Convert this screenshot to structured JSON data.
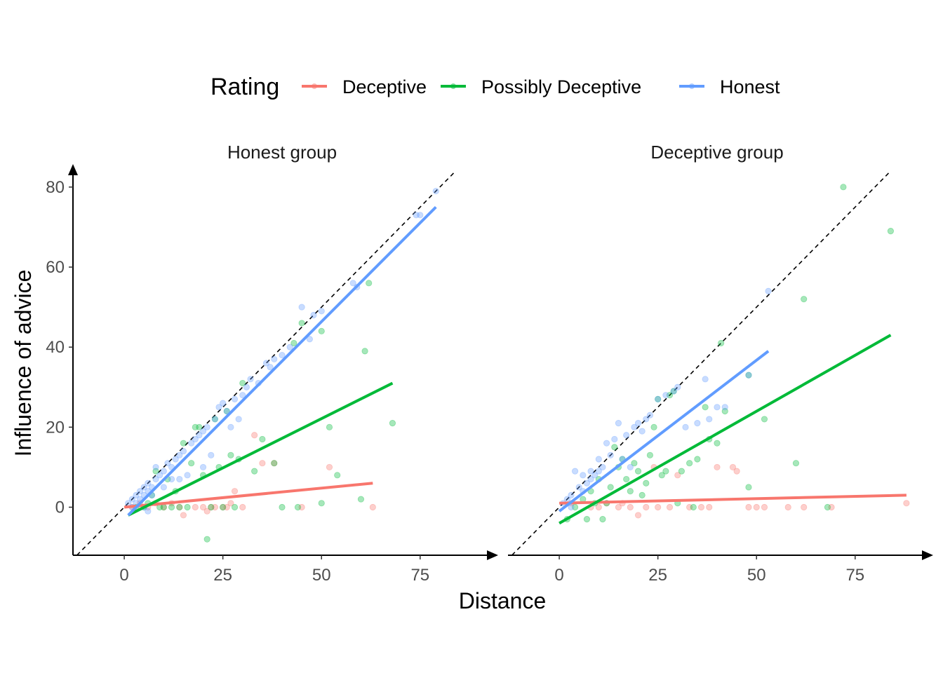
{
  "chart_data": {
    "type": "scatter",
    "xlabel": "Distance",
    "ylabel": "Influence of advice",
    "xlim": [
      -13,
      93
    ],
    "ylim": [
      -12,
      84
    ],
    "x_ticks": [
      0,
      25,
      50,
      75
    ],
    "y_ticks": [
      0,
      20,
      40,
      60,
      80
    ],
    "legend": {
      "title": "Rating",
      "placement": "top",
      "entries": [
        {
          "name": "Deceptive",
          "color": "#F8766D"
        },
        {
          "name": "Possibly Deceptive",
          "color": "#00BA38"
        },
        {
          "name": "Honest",
          "color": "#619CFF"
        }
      ]
    },
    "reference_line": {
      "type": "identity",
      "style": "dashed",
      "color": "#000000"
    },
    "facets": [
      {
        "title": "Honest group",
        "series": [
          {
            "name": "Deceptive",
            "fit": [
              [
                0,
                0
              ],
              [
                63,
                6
              ]
            ],
            "points": [
              [
                2,
                0
              ],
              [
                4,
                1
              ],
              [
                6,
                0
              ],
              [
                10,
                0
              ],
              [
                14,
                0
              ],
              [
                15,
                -2
              ],
              [
                20,
                0
              ],
              [
                21,
                -1
              ],
              [
                23,
                0
              ],
              [
                25,
                0
              ],
              [
                27,
                1
              ],
              [
                28,
                4
              ],
              [
                30,
                0
              ],
              [
                33,
                18
              ],
              [
                35,
                11
              ],
              [
                38,
                11
              ],
              [
                45,
                0
              ],
              [
                52,
                10
              ],
              [
                63,
                0
              ],
              [
                8,
                1
              ],
              [
                12,
                1
              ],
              [
                18,
                0
              ],
              [
                22,
                0
              ],
              [
                26,
                0
              ]
            ]
          },
          {
            "name": "Possibly Deceptive",
            "fit": [
              [
                1,
                -2
              ],
              [
                68,
                31
              ]
            ],
            "points": [
              [
                3,
                0
              ],
              [
                5,
                0
              ],
              [
                6,
                1
              ],
              [
                7,
                3
              ],
              [
                8,
                9
              ],
              [
                9,
                0
              ],
              [
                10,
                0
              ],
              [
                11,
                7
              ],
              [
                12,
                0
              ],
              [
                13,
                4
              ],
              [
                14,
                0
              ],
              [
                15,
                16
              ],
              [
                16,
                0
              ],
              [
                17,
                11
              ],
              [
                18,
                20
              ],
              [
                19,
                20
              ],
              [
                20,
                8
              ],
              [
                21,
                -8
              ],
              [
                22,
                0
              ],
              [
                23,
                22
              ],
              [
                24,
                10
              ],
              [
                25,
                0
              ],
              [
                26,
                24
              ],
              [
                27,
                13
              ],
              [
                28,
                0
              ],
              [
                29,
                12
              ],
              [
                30,
                31
              ],
              [
                33,
                9
              ],
              [
                35,
                17
              ],
              [
                38,
                11
              ],
              [
                40,
                0
              ],
              [
                43,
                41
              ],
              [
                44,
                0
              ],
              [
                45,
                46
              ],
              [
                50,
                44
              ],
              [
                50,
                1
              ],
              [
                52,
                20
              ],
              [
                54,
                8
              ],
              [
                60,
                2
              ],
              [
                61,
                39
              ],
              [
                62,
                56
              ],
              [
                68,
                21
              ]
            ]
          },
          {
            "name": "Honest",
            "fit": [
              [
                1,
                -2
              ],
              [
                79,
                75
              ]
            ],
            "points": [
              [
                1,
                1
              ],
              [
                2,
                2
              ],
              [
                2,
                0
              ],
              [
                3,
                3
              ],
              [
                3,
                1
              ],
              [
                4,
                4
              ],
              [
                4,
                2
              ],
              [
                5,
                5
              ],
              [
                5,
                3
              ],
              [
                5,
                0
              ],
              [
                6,
                6
              ],
              [
                6,
                4
              ],
              [
                6,
                -1
              ],
              [
                7,
                5
              ],
              [
                7,
                3
              ],
              [
                8,
                10
              ],
              [
                8,
                7
              ],
              [
                9,
                8
              ],
              [
                10,
                9
              ],
              [
                10,
                5
              ],
              [
                11,
                11
              ],
              [
                12,
                10
              ],
              [
                12,
                7
              ],
              [
                13,
                12
              ],
              [
                14,
                13
              ],
              [
                14,
                7
              ],
              [
                15,
                14
              ],
              [
                16,
                8
              ],
              [
                17,
                16
              ],
              [
                18,
                17
              ],
              [
                19,
                18
              ],
              [
                20,
                19
              ],
              [
                20,
                10
              ],
              [
                21,
                20
              ],
              [
                22,
                13
              ],
              [
                23,
                22
              ],
              [
                24,
                25
              ],
              [
                25,
                26
              ],
              [
                26,
                24
              ],
              [
                27,
                20
              ],
              [
                28,
                27
              ],
              [
                29,
                22
              ],
              [
                30,
                28
              ],
              [
                31,
                30
              ],
              [
                32,
                32
              ],
              [
                34,
                31
              ],
              [
                36,
                36
              ],
              [
                37,
                35
              ],
              [
                38,
                37
              ],
              [
                40,
                38
              ],
              [
                42,
                40
              ],
              [
                45,
                50
              ],
              [
                47,
                42
              ],
              [
                48,
                48
              ],
              [
                50,
                49
              ],
              [
                58,
                56
              ],
              [
                59,
                55
              ],
              [
                74,
                73
              ],
              [
                75,
                73
              ],
              [
                79,
                79
              ]
            ]
          }
        ]
      },
      {
        "title": "Deceptive group",
        "series": [
          {
            "name": "Deceptive",
            "fit": [
              [
                0,
                1
              ],
              [
                88,
                3
              ]
            ],
            "points": [
              [
                3,
                1
              ],
              [
                8,
                0
              ],
              [
                12,
                1
              ],
              [
                15,
                0
              ],
              [
                18,
                0
              ],
              [
                20,
                -2
              ],
              [
                22,
                0
              ],
              [
                24,
                10
              ],
              [
                25,
                0
              ],
              [
                28,
                0
              ],
              [
                30,
                8
              ],
              [
                33,
                0
              ],
              [
                36,
                0
              ],
              [
                38,
                0
              ],
              [
                40,
                10
              ],
              [
                44,
                10
              ],
              [
                45,
                9
              ],
              [
                48,
                0
              ],
              [
                50,
                0
              ],
              [
                52,
                0
              ],
              [
                58,
                0
              ],
              [
                62,
                0
              ],
              [
                69,
                0
              ],
              [
                88,
                1
              ],
              [
                10,
                0
              ],
              [
                16,
                1
              ]
            ]
          },
          {
            "name": "Possibly Deceptive",
            "fit": [
              [
                0,
                -4
              ],
              [
                84,
                43
              ]
            ],
            "points": [
              [
                2,
                -3
              ],
              [
                4,
                0
              ],
              [
                6,
                2
              ],
              [
                7,
                -3
              ],
              [
                8,
                4
              ],
              [
                9,
                1
              ],
              [
                10,
                7
              ],
              [
                11,
                -3
              ],
              [
                12,
                1
              ],
              [
                13,
                5
              ],
              [
                14,
                15
              ],
              [
                15,
                10
              ],
              [
                16,
                12
              ],
              [
                17,
                7
              ],
              [
                18,
                4
              ],
              [
                19,
                11
              ],
              [
                20,
                9
              ],
              [
                21,
                3
              ],
              [
                22,
                6
              ],
              [
                23,
                13
              ],
              [
                24,
                20
              ],
              [
                25,
                27
              ],
              [
                26,
                8
              ],
              [
                27,
                9
              ],
              [
                28,
                28
              ],
              [
                29,
                29
              ],
              [
                30,
                1
              ],
              [
                31,
                9
              ],
              [
                33,
                11
              ],
              [
                34,
                0
              ],
              [
                35,
                12
              ],
              [
                37,
                25
              ],
              [
                38,
                17
              ],
              [
                40,
                16
              ],
              [
                41,
                41
              ],
              [
                42,
                24
              ],
              [
                48,
                33
              ],
              [
                48,
                5
              ],
              [
                52,
                22
              ],
              [
                60,
                11
              ],
              [
                62,
                52
              ],
              [
                68,
                0
              ],
              [
                72,
                80
              ],
              [
                84,
                69
              ]
            ]
          },
          {
            "name": "Honest",
            "fit": [
              [
                0,
                -1
              ],
              [
                53,
                39
              ]
            ],
            "points": [
              [
                1,
                1
              ],
              [
                2,
                2
              ],
              [
                3,
                3
              ],
              [
                3,
                0
              ],
              [
                4,
                9
              ],
              [
                5,
                5
              ],
              [
                6,
                4
              ],
              [
                7,
                6
              ],
              [
                8,
                7
              ],
              [
                9,
                8
              ],
              [
                10,
                9
              ],
              [
                10,
                12
              ],
              [
                11,
                10
              ],
              [
                12,
                16
              ],
              [
                13,
                13
              ],
              [
                14,
                17
              ],
              [
                15,
                21
              ],
              [
                16,
                12
              ],
              [
                17,
                18
              ],
              [
                18,
                10
              ],
              [
                19,
                20
              ],
              [
                20,
                21
              ],
              [
                21,
                19
              ],
              [
                22,
                22
              ],
              [
                23,
                23
              ],
              [
                25,
                27
              ],
              [
                27,
                28
              ],
              [
                29,
                29
              ],
              [
                30,
                30
              ],
              [
                32,
                20
              ],
              [
                35,
                21
              ],
              [
                37,
                32
              ],
              [
                38,
                22
              ],
              [
                40,
                25
              ],
              [
                42,
                25
              ],
              [
                48,
                33
              ],
              [
                53,
                54
              ],
              [
                6,
                8
              ],
              [
                8,
                9
              ]
            ]
          }
        ]
      }
    ]
  }
}
